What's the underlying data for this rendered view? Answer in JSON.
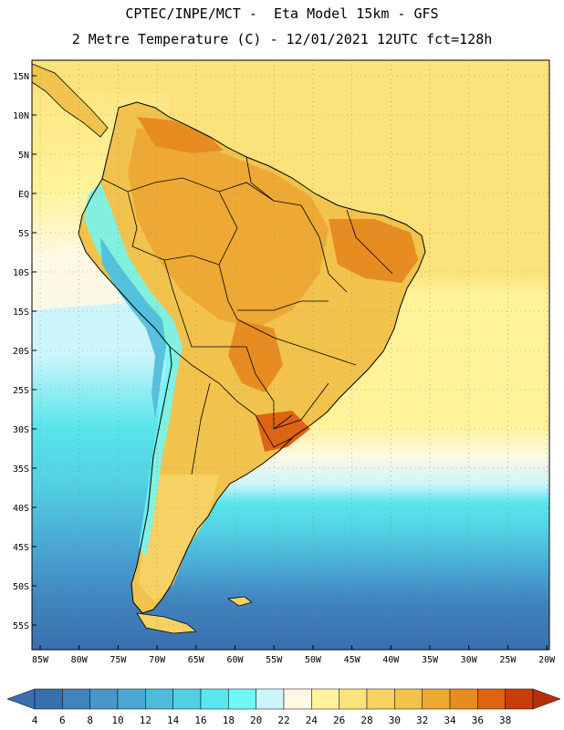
{
  "header": {
    "line1": "CPTEC/INPE/MCT -  Eta Model 15km - GFS",
    "line2": "2 Metre Temperature (C) - 12/01/2021 12UTC fct=128h"
  },
  "map": {
    "lat_labels": [
      "15N",
      "10N",
      "5N",
      "EQ",
      "5S",
      "10S",
      "15S",
      "20S",
      "25S",
      "30S",
      "35S",
      "40S",
      "45S",
      "50S",
      "55S"
    ],
    "lon_labels": [
      "85W",
      "80W",
      "75W",
      "70W",
      "65W",
      "60W",
      "55W",
      "50W",
      "45W",
      "40W",
      "35W",
      "30W",
      "25W",
      "20W"
    ]
  },
  "colorbar": {
    "labels": [
      "4",
      "6",
      "8",
      "10",
      "12",
      "14",
      "16",
      "18",
      "20",
      "22",
      "24",
      "26",
      "28",
      "30",
      "32",
      "34",
      "36",
      "38"
    ],
    "colors": [
      "#3a6fae",
      "#4083bd",
      "#4996c8",
      "#4aa9d4",
      "#4dbcdb",
      "#52d0e2",
      "#5ae6ec",
      "#6ff8f8",
      "#ccf5fb",
      "#fff8e4",
      "#fff39a",
      "#fbe27a",
      "#f6d264",
      "#f1c34c",
      "#eda934",
      "#e78c20",
      "#dd6412",
      "#c83e08"
    ],
    "left_cap": "#3a6fae",
    "right_cap": "#b5300a"
  }
}
